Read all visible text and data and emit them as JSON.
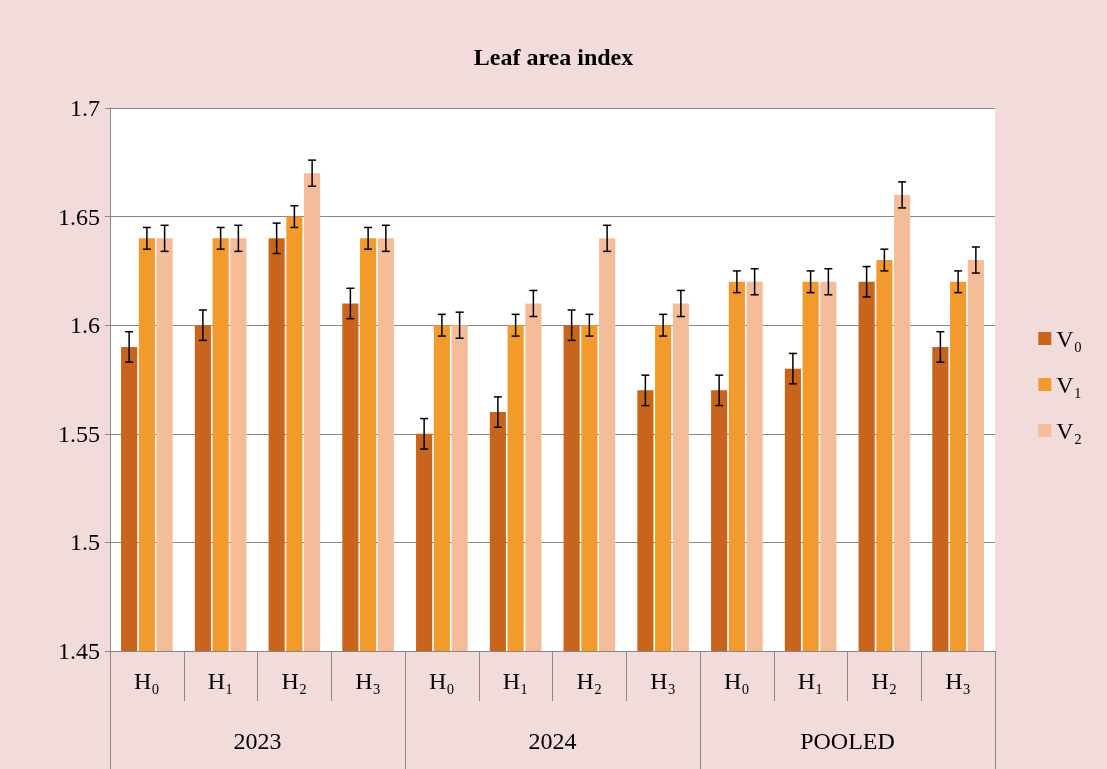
{
  "chart_data": {
    "type": "bar",
    "title": "Leaf area index",
    "categories": [
      "H₀",
      "H₁",
      "H₂",
      "H₃",
      "H₀",
      "H₁",
      "H₂",
      "H₃",
      "H₀",
      "H₁",
      "H₂",
      "H₃"
    ],
    "annotations": [
      "2023",
      "2024",
      "POOLED"
    ],
    "series": [
      {
        "name": "V₀",
        "color": "#c8641c",
        "values": [
          1.59,
          1.6,
          1.64,
          1.61,
          1.55,
          1.56,
          1.6,
          1.57,
          1.57,
          1.58,
          1.62,
          1.59
        ],
        "errors": [
          0.007,
          0.007,
          0.007,
          0.007,
          0.007,
          0.007,
          0.007,
          0.007,
          0.007,
          0.007,
          0.007,
          0.007
        ]
      },
      {
        "name": "V₁",
        "color": "#f39a2c",
        "values": [
          1.64,
          1.64,
          1.65,
          1.64,
          1.6,
          1.6,
          1.6,
          1.6,
          1.62,
          1.62,
          1.63,
          1.62
        ],
        "errors": [
          0.005,
          0.005,
          0.005,
          0.005,
          0.005,
          0.005,
          0.005,
          0.005,
          0.005,
          0.005,
          0.005,
          0.005
        ]
      },
      {
        "name": "V₂",
        "color": "#f4bc98",
        "values": [
          1.64,
          1.64,
          1.67,
          1.64,
          1.6,
          1.61,
          1.64,
          1.61,
          1.62,
          1.62,
          1.66,
          1.63
        ],
        "errors": [
          0.006,
          0.006,
          0.006,
          0.006,
          0.006,
          0.006,
          0.006,
          0.006,
          0.006,
          0.006,
          0.006,
          0.006
        ]
      }
    ],
    "ylim": [
      1.45,
      1.7
    ],
    "yticks": [
      1.45,
      1.5,
      1.55,
      1.6,
      1.65,
      1.7
    ],
    "grid": "y",
    "legend": "right"
  }
}
